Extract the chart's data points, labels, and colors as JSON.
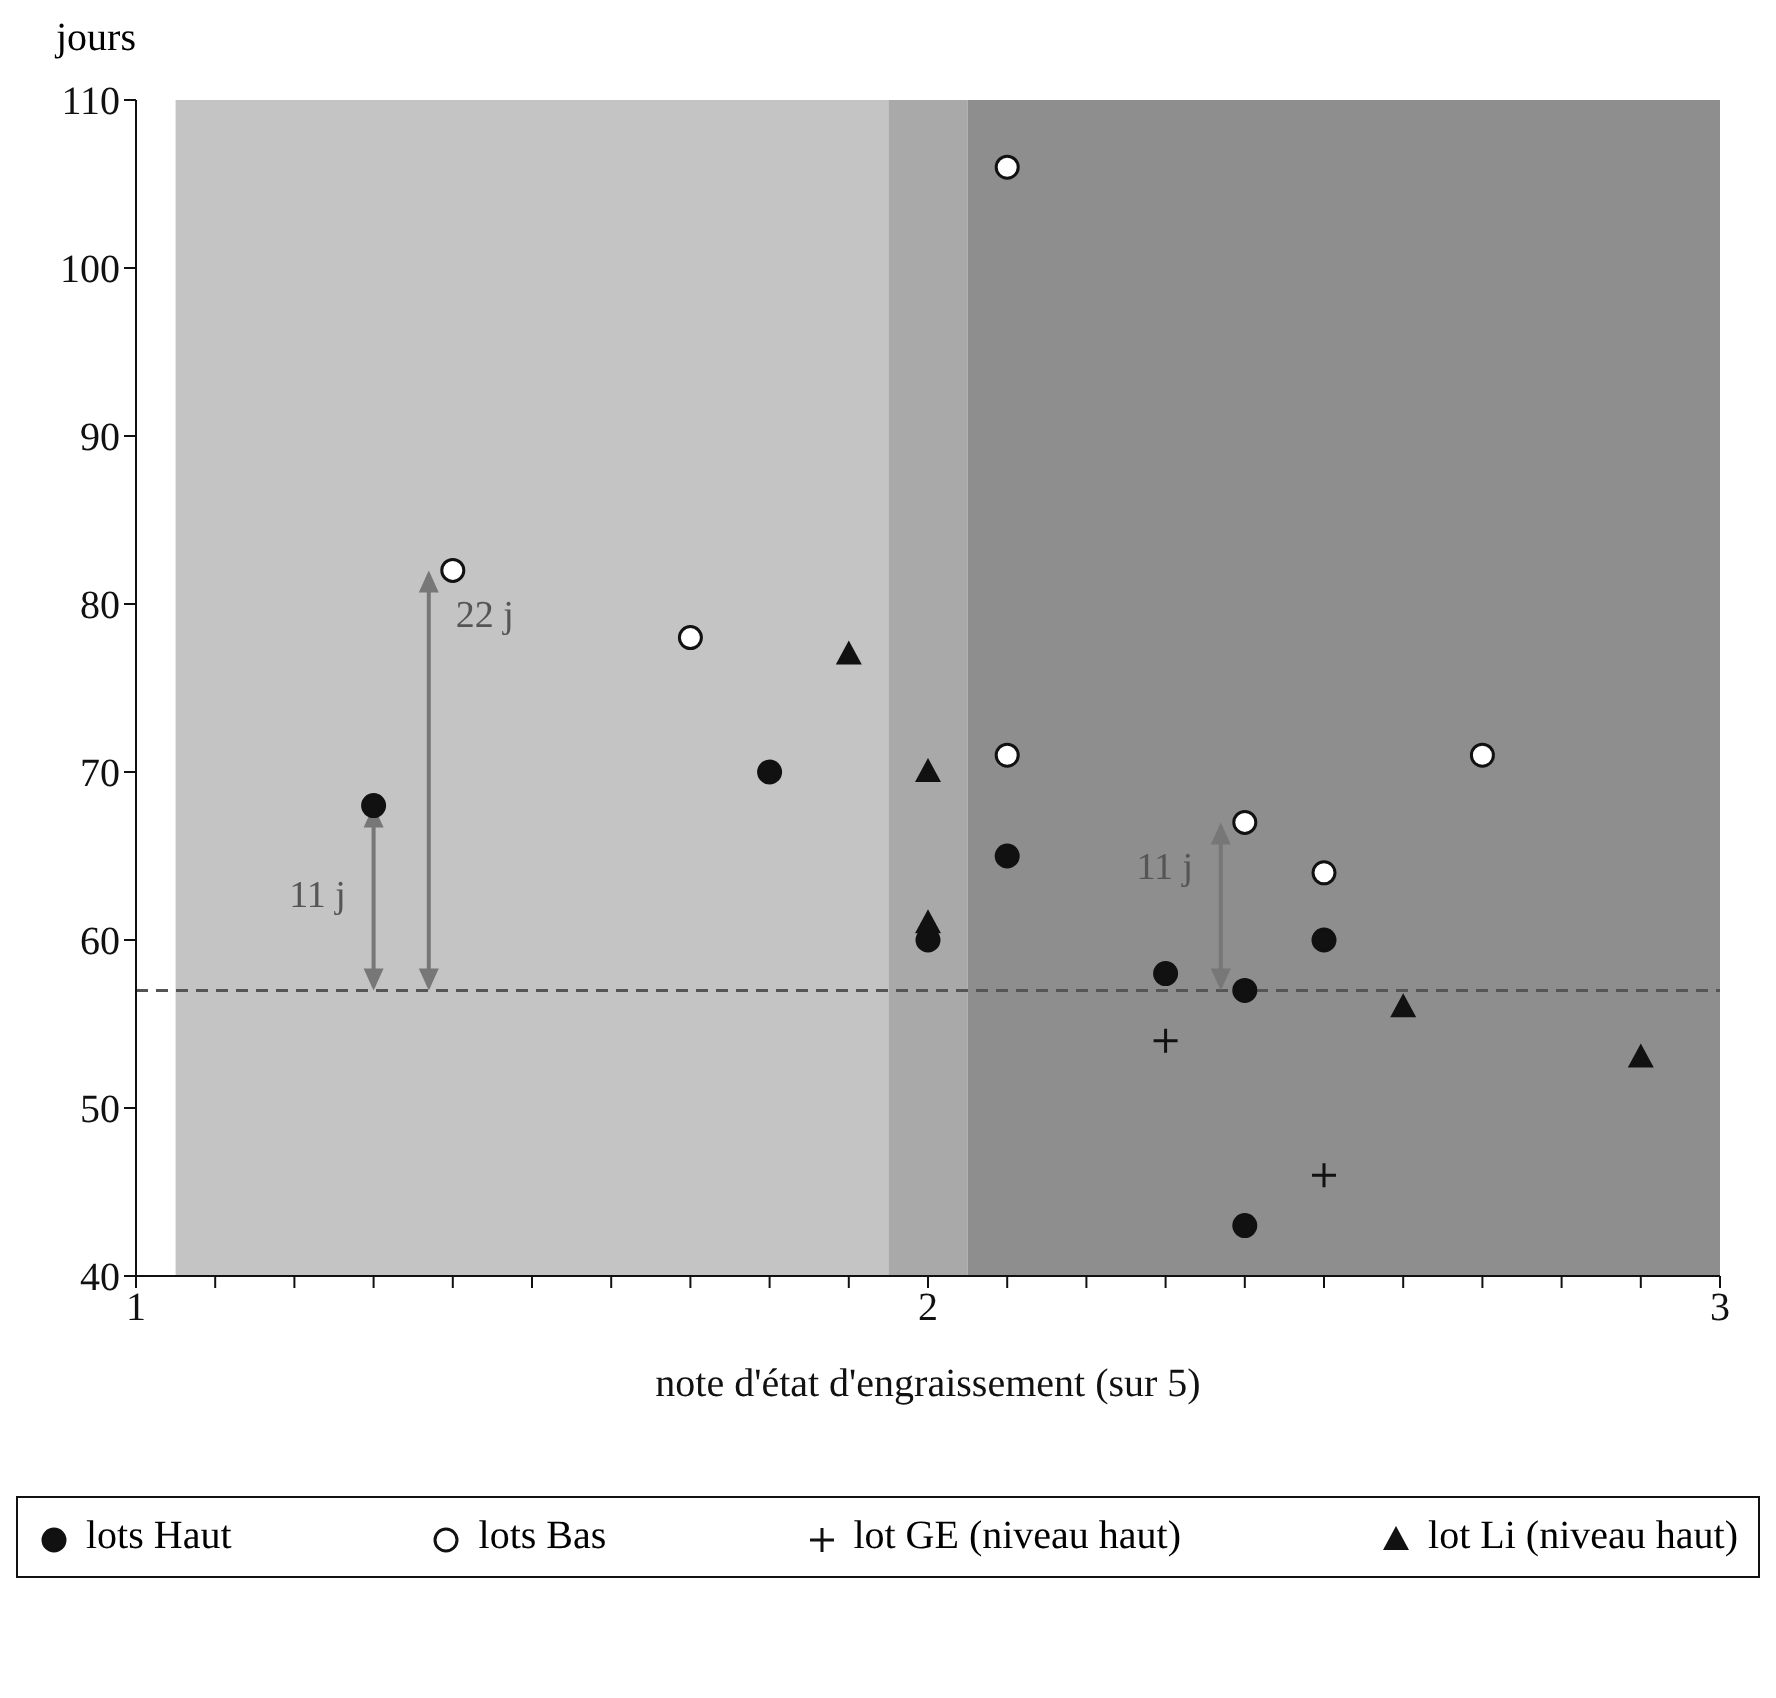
{
  "chart_data": {
    "type": "scatter",
    "ylabel": "jours",
    "xlabel": "note d'état d'engraissement (sur 5)",
    "xlim": [
      1,
      3
    ],
    "ylim": [
      40,
      110
    ],
    "xticks": [
      1,
      {
        "value": 1.1,
        "label": null
      },
      {
        "value": 1.2,
        "label": null
      },
      {
        "value": 1.3,
        "label": null
      },
      {
        "value": 1.4,
        "label": null
      },
      {
        "value": 1.5,
        "label": null
      },
      {
        "value": 1.6,
        "label": null
      },
      {
        "value": 1.7,
        "label": null
      },
      {
        "value": 1.8,
        "label": null
      },
      {
        "value": 1.9,
        "label": null
      },
      2,
      {
        "value": 2.1,
        "label": null
      },
      {
        "value": 2.2,
        "label": null
      },
      {
        "value": 2.3,
        "label": null
      },
      {
        "value": 2.4,
        "label": null
      },
      {
        "value": 2.5,
        "label": null
      },
      {
        "value": 2.6,
        "label": null
      },
      {
        "value": 2.7,
        "label": null
      },
      {
        "value": 2.8,
        "label": null
      },
      {
        "value": 2.9,
        "label": null
      },
      3
    ],
    "yticks": [
      40,
      50,
      60,
      70,
      80,
      90,
      100,
      110
    ],
    "grid": false,
    "legend": "bottom",
    "series": [
      {
        "name": "lots Haut",
        "color": "#111111",
        "marker": "circle",
        "x": [
          1.3,
          1.8,
          2.0,
          2.1,
          2.3,
          2.4,
          2.5,
          2.4
        ],
        "values": [
          68,
          70,
          60,
          65,
          58,
          57,
          60,
          43
        ]
      },
      {
        "name": "lots Bas",
        "color": "#ffffff",
        "marker": "circle",
        "x": [
          1.4,
          1.7,
          2.1,
          2.1,
          2.4,
          2.5,
          2.7
        ],
        "values": [
          82,
          78,
          106,
          71,
          67,
          64,
          71
        ]
      },
      {
        "name": "lot GE (niveau haut)",
        "color": "#111111",
        "marker": "cross",
        "x": [
          2.3,
          2.5
        ],
        "values": [
          54,
          46
        ]
      },
      {
        "name": "lot Li (niveau haut)",
        "color": "#111111",
        "marker": "triangle",
        "x": [
          1.9,
          2.0,
          2.0,
          2.6,
          2.9
        ],
        "values": [
          77,
          70,
          61,
          56,
          53
        ]
      }
    ],
    "bands": [
      {
        "axis": "x",
        "from": 1.05,
        "to": 1.95,
        "color": "#c4c4c4"
      },
      {
        "axis": "x",
        "from": 1.95,
        "to": 2.05,
        "color": "#a9a9a9"
      },
      {
        "axis": "x",
        "from": 2.05,
        "to": 3,
        "color": "#8e8e8e"
      }
    ],
    "ref_lines": [
      {
        "axis": "y",
        "value": 57,
        "color": "#555555",
        "line_style": "dashed"
      }
    ],
    "annotations": [
      {
        "text": "11 j",
        "x": 1.3,
        "y": 68
      },
      {
        "text": "22 j",
        "x": 1.4,
        "y": 82
      },
      {
        "text": "11 j",
        "x": 2.4,
        "y": 67
      }
    ]
  }
}
